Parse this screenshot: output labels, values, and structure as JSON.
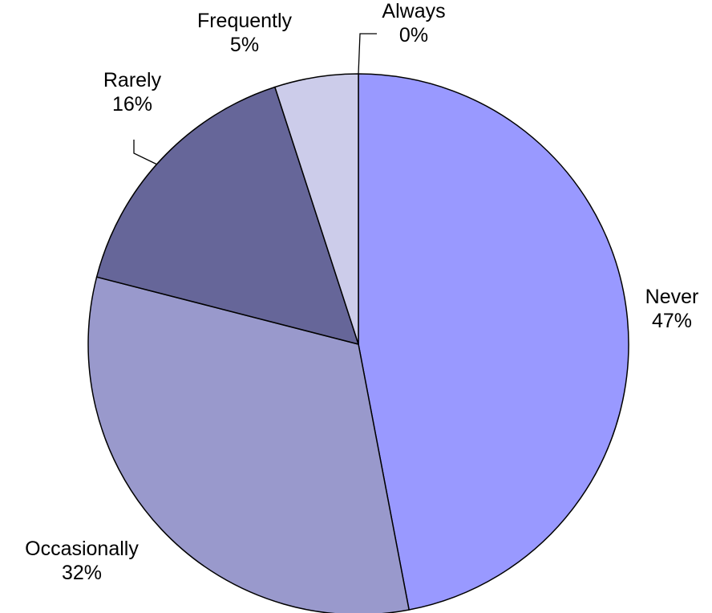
{
  "chart_data": {
    "type": "pie",
    "start": "12 o'clock",
    "direction": "clockwise",
    "slices": [
      {
        "label": "Never",
        "value": 47,
        "value_label": "47%",
        "color": "#9999ff"
      },
      {
        "label": "Occasionally",
        "value": 32,
        "value_label": "32%",
        "color": "#9999cc"
      },
      {
        "label": "Rarely",
        "value": 16,
        "value_label": "16%",
        "color": "#666699"
      },
      {
        "label": "Frequently",
        "value": 5,
        "value_label": "5%",
        "color": "#ccccea"
      },
      {
        "label": "Always",
        "value": 0,
        "value_label": "0%",
        "color": "#ccccff"
      }
    ]
  }
}
